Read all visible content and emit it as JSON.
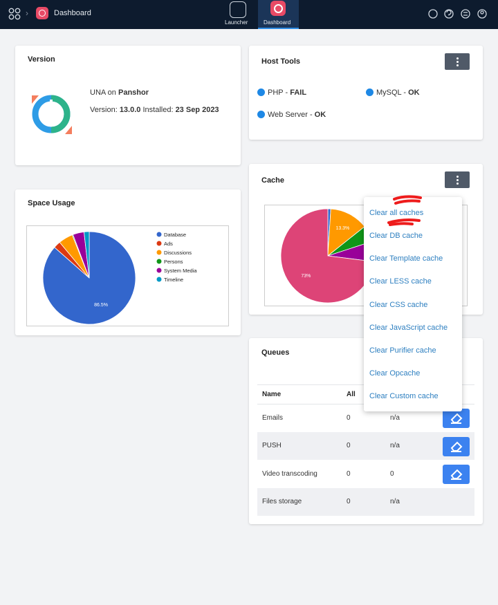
{
  "topbar": {
    "breadcrumb": "Dashboard",
    "tabs": [
      "Launcher",
      "Dashboard"
    ]
  },
  "version": {
    "title": "Version",
    "line1_prefix": "UNA on",
    "site": "Panshor",
    "version_label": "Version:",
    "version": "13.0.0",
    "installed_label": "Installed:",
    "installed": "23 Sep 2023"
  },
  "host_tools": {
    "title": "Host Tools",
    "separator": "-",
    "items": [
      {
        "name": "PHP",
        "status": "FAIL"
      },
      {
        "name": "MySQL",
        "status": "OK"
      },
      {
        "name": "Web Server",
        "status": "OK"
      }
    ]
  },
  "space_usage": {
    "title": "Space Usage",
    "chart": {
      "type": "pie",
      "categories": [
        "Database",
        "Ads",
        "Discussions",
        "Persons",
        "System Media",
        "Timeline"
      ],
      "values": [
        86.5,
        2.5,
        5,
        0.3,
        3.9,
        1.8
      ],
      "value_labels": [
        "86.5%",
        null,
        null,
        null,
        null,
        null
      ],
      "colors": [
        "#3366cc",
        "#dc3912",
        "#ff9900",
        "#109618",
        "#990099",
        "#0099c6"
      ]
    }
  },
  "cache": {
    "title": "Cache",
    "chart": {
      "type": "pie",
      "categories": [
        null,
        null,
        null,
        null,
        null
      ],
      "values": [
        1,
        13.3,
        5.7,
        7,
        73
      ],
      "value_labels": [
        null,
        "13.3%",
        null,
        null,
        "73%"
      ],
      "colors": [
        "#3366cc",
        "#ff9900",
        "#109618",
        "#990099",
        "#dd4477"
      ]
    },
    "menu": [
      "Clear all caches",
      "Clear DB cache",
      "Clear Template cache",
      "Clear LESS cache",
      "Clear CSS cache",
      "Clear JavaScript cache",
      "Clear Purifier cache",
      "Clear Opcache",
      "Clear Custom cache"
    ]
  },
  "queues": {
    "title": "Queues",
    "columns": [
      "Name",
      "All"
    ],
    "rows": [
      [
        "Emails",
        0,
        "n/a"
      ],
      [
        "PUSH",
        0,
        "n/a"
      ],
      [
        "Video transcoding",
        0,
        0
      ],
      [
        "Files storage",
        0,
        "n/a"
      ]
    ]
  }
}
